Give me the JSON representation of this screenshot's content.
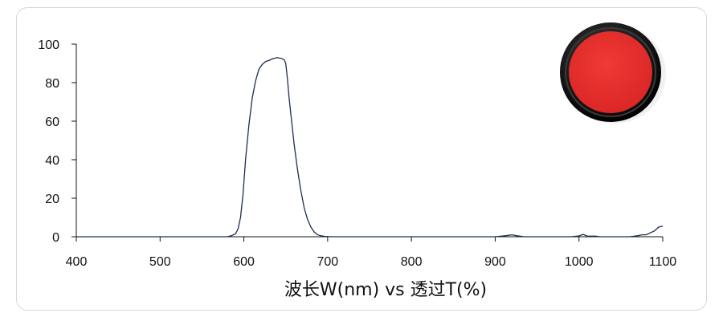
{
  "chart_data": {
    "type": "line",
    "title": "",
    "xlabel": "波长W(nm) vs 透过T(%)",
    "ylabel": "",
    "xlim": [
      400,
      1100
    ],
    "ylim": [
      0,
      100
    ],
    "x_ticks": [
      400,
      500,
      600,
      700,
      800,
      900,
      1000,
      1100
    ],
    "y_ticks": [
      0,
      20,
      40,
      60,
      80,
      100
    ],
    "grid": false,
    "legend": "none",
    "line_color": "#1f2d55",
    "series": [
      {
        "x": [
          400,
          560,
          580,
          585,
          590,
          593,
          596,
          599,
          602,
          606,
          610,
          614,
          618,
          622,
          626,
          630,
          635,
          640,
          645,
          648,
          650,
          652,
          654,
          656,
          658,
          660,
          664,
          668,
          672,
          676,
          680,
          684,
          688,
          692,
          696,
          700,
          705,
          900,
          912,
          920,
          926,
          935,
          990,
          1000,
          1005,
          1010,
          1020,
          1025,
          1060,
          1070,
          1075,
          1080,
          1085,
          1090,
          1095,
          1100
        ],
        "y": [
          0,
          0,
          0,
          0.5,
          1.5,
          4,
          10,
          22,
          40,
          58,
          72,
          81,
          87,
          89.5,
          91,
          91.5,
          92.5,
          93,
          92.5,
          92,
          90,
          82,
          72,
          64,
          56,
          48,
          35,
          24,
          15,
          9,
          5,
          2.5,
          1,
          0.5,
          0.2,
          0.1,
          0,
          0,
          0.5,
          1,
          0.5,
          0,
          0,
          0.4,
          1.2,
          0.3,
          0.3,
          0,
          0,
          0.5,
          1,
          1,
          2,
          3,
          5,
          5.5
        ]
      }
    ]
  },
  "filter_image": {
    "frame_color": "#1a1a1a",
    "glass_color": "#e02a2a"
  }
}
